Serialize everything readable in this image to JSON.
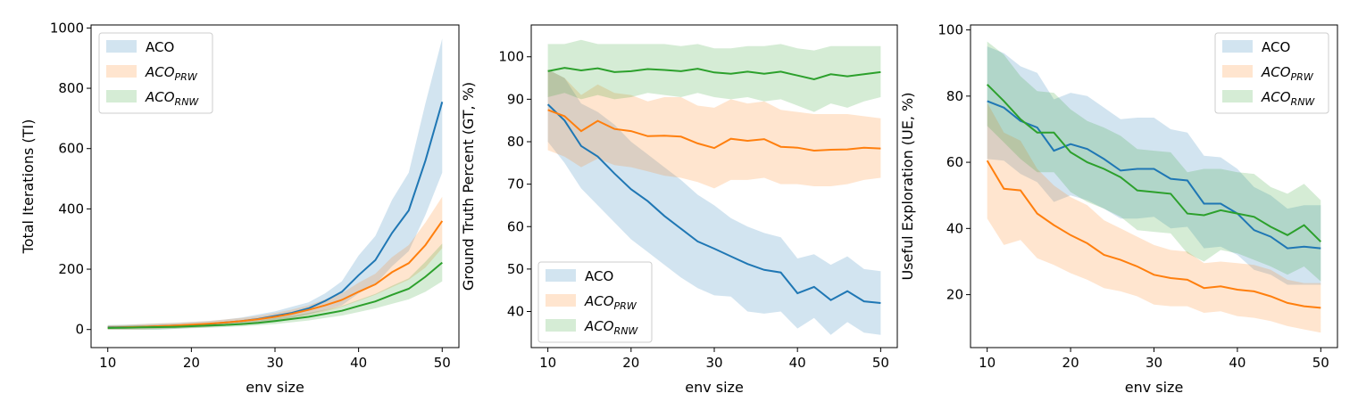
{
  "colors": {
    "ACO": "#1f77b4",
    "ACO_PRW": "#ff7f0e",
    "ACO_RNW": "#2ca02c"
  },
  "chart_data": [
    {
      "type": "line",
      "xlabel": "env size",
      "ylabel": "Total Iterations (TI)",
      "xlim": [
        8,
        52
      ],
      "ylim": [
        -60,
        1010
      ],
      "xticks": [
        10,
        20,
        30,
        40,
        50
      ],
      "yticks": [
        0,
        200,
        400,
        600,
        800,
        1000
      ],
      "grid": false,
      "legend": {
        "position": "top-left"
      },
      "x": [
        10,
        12,
        14,
        16,
        18,
        20,
        22,
        24,
        26,
        28,
        30,
        32,
        34,
        36,
        38,
        40,
        42,
        44,
        46,
        48,
        50
      ],
      "series": [
        {
          "name": "ACO",
          "base": "ACO",
          "sub": "",
          "color_key": "ACO",
          "mean": [
            7,
            8,
            9,
            11,
            13,
            15,
            18,
            23,
            28,
            35,
            45,
            55,
            70,
            95,
            125,
            180,
            230,
            320,
            395,
            560,
            755
          ],
          "lower": [
            0,
            0,
            0,
            0,
            2,
            5,
            8,
            12,
            15,
            20,
            30,
            38,
            50,
            65,
            80,
            120,
            150,
            210,
            260,
            380,
            520
          ],
          "upper": [
            15,
            16,
            18,
            20,
            22,
            25,
            28,
            33,
            40,
            50,
            60,
            75,
            90,
            120,
            160,
            245,
            310,
            430,
            520,
            750,
            965
          ]
        },
        {
          "name": "ACO_PRW",
          "base": "ACO",
          "sub": "PRW",
          "color_key": "ACO_PRW",
          "mean": [
            6,
            7,
            9,
            11,
            13,
            16,
            19,
            23,
            28,
            34,
            42,
            52,
            65,
            80,
            98,
            125,
            150,
            190,
            220,
            280,
            360
          ],
          "lower": [
            0,
            0,
            0,
            2,
            4,
            6,
            8,
            12,
            16,
            22,
            30,
            38,
            48,
            60,
            75,
            95,
            115,
            140,
            165,
            205,
            270
          ],
          "upper": [
            14,
            15,
            18,
            20,
            22,
            25,
            28,
            33,
            38,
            45,
            55,
            66,
            80,
            100,
            120,
            155,
            185,
            240,
            280,
            355,
            440
          ]
        },
        {
          "name": "ACO_RNW",
          "base": "ACO",
          "sub": "RNW",
          "color_key": "ACO_RNW",
          "mean": [
            5,
            6,
            7,
            8,
            9,
            11,
            13,
            15,
            18,
            22,
            28,
            35,
            42,
            52,
            62,
            78,
            93,
            115,
            135,
            175,
            222
          ],
          "lower": [
            0,
            0,
            0,
            0,
            2,
            4,
            6,
            8,
            10,
            14,
            18,
            24,
            30,
            38,
            46,
            58,
            70,
            85,
            100,
            125,
            160
          ],
          "upper": [
            12,
            13,
            14,
            15,
            16,
            18,
            20,
            22,
            26,
            30,
            38,
            46,
            55,
            66,
            78,
            98,
            118,
            145,
            170,
            225,
            285
          ]
        }
      ]
    },
    {
      "type": "line",
      "xlabel": "env size",
      "ylabel": "Ground Truth Percent (GT, %)",
      "xlim": [
        8,
        52
      ],
      "ylim": [
        31.5,
        107.5
      ],
      "xticks": [
        10,
        20,
        30,
        40,
        50
      ],
      "yticks": [
        40,
        50,
        60,
        70,
        80,
        90,
        100
      ],
      "grid": false,
      "legend": {
        "position": "bottom-left"
      },
      "x": [
        10,
        12,
        14,
        16,
        18,
        20,
        22,
        24,
        26,
        28,
        30,
        32,
        34,
        36,
        38,
        40,
        42,
        44,
        46,
        48,
        50
      ],
      "series": [
        {
          "name": "ACO",
          "base": "ACO",
          "sub": "",
          "color_key": "ACO",
          "mean": [
            88.8,
            85.0,
            79.0,
            76.5,
            72.5,
            68.8,
            66.0,
            62.5,
            59.5,
            56.5,
            54.8,
            53.0,
            51.2,
            49.8,
            49.2,
            44.3,
            45.8,
            42.7,
            44.8,
            42.4,
            42.0
          ],
          "lower": [
            80.0,
            75.0,
            69.0,
            65.0,
            61.0,
            57.0,
            54.0,
            51.0,
            48.0,
            45.5,
            43.8,
            43.5,
            40.0,
            39.5,
            40.0,
            36.0,
            38.5,
            34.5,
            37.5,
            35.0,
            34.5
          ],
          "upper": [
            97.0,
            95.0,
            89.0,
            87.0,
            84.0,
            80.0,
            77.0,
            74.0,
            71.0,
            67.5,
            65.0,
            62.0,
            60.0,
            58.5,
            57.5,
            52.5,
            53.5,
            51.0,
            53.0,
            50.0,
            49.5
          ]
        },
        {
          "name": "ACO_PRW",
          "base": "ACO",
          "sub": "PRW",
          "color_key": "ACO_PRW",
          "mean": [
            87.5,
            86.0,
            82.5,
            84.9,
            83.0,
            82.5,
            81.3,
            81.4,
            81.2,
            79.6,
            78.5,
            80.7,
            80.2,
            80.6,
            78.8,
            78.6,
            77.9,
            78.1,
            78.2,
            78.6,
            78.4
          ],
          "lower": [
            78.0,
            76.5,
            74.0,
            76.0,
            74.5,
            74.0,
            73.0,
            72.0,
            71.5,
            70.5,
            69.0,
            71.0,
            71.0,
            71.5,
            70.0,
            70.0,
            69.5,
            69.5,
            70.0,
            71.0,
            71.5
          ],
          "upper": [
            97.0,
            95.0,
            91.0,
            93.5,
            91.5,
            91.0,
            89.5,
            90.5,
            90.5,
            88.5,
            88.0,
            90.0,
            89.0,
            89.5,
            87.5,
            87.0,
            86.5,
            86.5,
            86.5,
            86.0,
            85.5
          ]
        },
        {
          "name": "ACO_RNW",
          "base": "ACO",
          "sub": "RNW",
          "color_key": "ACO_RNW",
          "mean": [
            96.6,
            97.4,
            96.8,
            97.3,
            96.4,
            96.6,
            97.1,
            96.9,
            96.6,
            97.2,
            96.3,
            96.0,
            96.5,
            96.0,
            96.5,
            95.6,
            94.7,
            95.9,
            95.4,
            95.9,
            96.4
          ],
          "lower": [
            90.5,
            91.5,
            90.0,
            91.0,
            90.0,
            90.5,
            91.5,
            91.0,
            90.5,
            91.5,
            90.5,
            90.0,
            90.5,
            89.5,
            90.0,
            88.5,
            87.0,
            89.0,
            88.0,
            89.5,
            90.5
          ],
          "upper": [
            103.0,
            103.0,
            104.0,
            103.0,
            103.0,
            103.0,
            103.0,
            103.0,
            102.5,
            103.0,
            102.0,
            102.0,
            102.5,
            102.5,
            103.0,
            102.0,
            101.5,
            102.5,
            102.5,
            102.5,
            102.5
          ]
        }
      ]
    },
    {
      "type": "line",
      "xlabel": "env size",
      "ylabel": "Useful Exploration (UE, %)",
      "xlim": [
        8,
        52
      ],
      "ylim": [
        4.0,
        101.5
      ],
      "xticks": [
        10,
        20,
        30,
        40,
        50
      ],
      "yticks": [
        20,
        40,
        60,
        80,
        100
      ],
      "grid": false,
      "legend": {
        "position": "top-right"
      },
      "x": [
        10,
        12,
        14,
        16,
        18,
        20,
        22,
        24,
        26,
        28,
        30,
        32,
        34,
        36,
        38,
        40,
        42,
        44,
        46,
        48,
        50
      ],
      "series": [
        {
          "name": "ACO",
          "base": "ACO",
          "sub": "",
          "color_key": "ACO",
          "mean": [
            78.5,
            76.5,
            72.5,
            70.5,
            63.5,
            65.5,
            64.0,
            61.0,
            57.5,
            58.0,
            58.0,
            55.0,
            54.5,
            47.5,
            47.5,
            44.5,
            39.5,
            37.5,
            34.0,
            34.5,
            34.0
          ],
          "lower": [
            61.0,
            60.5,
            56.5,
            54.0,
            48.0,
            50.0,
            48.5,
            46.0,
            43.0,
            43.0,
            43.5,
            40.0,
            40.5,
            34.0,
            34.5,
            32.0,
            27.5,
            26.0,
            23.0,
            23.0,
            23.0
          ],
          "upper": [
            95.0,
            93.0,
            89.0,
            87.0,
            79.0,
            81.0,
            80.0,
            76.5,
            73.0,
            73.5,
            73.5,
            70.0,
            69.0,
            62.0,
            61.5,
            58.0,
            52.5,
            50.0,
            46.0,
            47.0,
            47.0
          ]
        },
        {
          "name": "ACO_PRW",
          "base": "ACO",
          "sub": "PRW",
          "color_key": "ACO_PRW",
          "mean": [
            60.5,
            52.0,
            51.5,
            44.5,
            41.0,
            38.0,
            35.5,
            32.0,
            30.5,
            28.5,
            26.0,
            25.0,
            24.5,
            22.0,
            22.5,
            21.5,
            21.0,
            19.5,
            17.5,
            16.5,
            16.0
          ],
          "lower": [
            43.0,
            35.0,
            36.5,
            31.0,
            29.0,
            26.5,
            24.5,
            22.0,
            21.0,
            19.5,
            17.0,
            16.5,
            16.5,
            14.5,
            15.0,
            13.5,
            13.0,
            12.0,
            10.5,
            9.5,
            8.5
          ],
          "upper": [
            78.0,
            69.0,
            66.5,
            58.0,
            53.0,
            49.5,
            47.0,
            42.5,
            40.0,
            37.5,
            35.0,
            33.5,
            33.0,
            29.5,
            30.0,
            29.5,
            29.0,
            27.5,
            24.5,
            23.5,
            23.5
          ]
        },
        {
          "name": "ACO_RNW",
          "base": "ACO",
          "sub": "RNW",
          "color_key": "ACO_RNW",
          "mean": [
            83.5,
            78.5,
            73.0,
            69.0,
            69.0,
            63.0,
            60.0,
            58.0,
            55.5,
            51.5,
            51.0,
            50.5,
            44.5,
            44.0,
            45.5,
            44.5,
            43.5,
            40.5,
            38.0,
            41.0,
            36.0
          ],
          "lower": [
            71.0,
            66.0,
            61.0,
            57.0,
            57.0,
            51.0,
            48.0,
            46.0,
            43.5,
            39.5,
            39.0,
            38.5,
            32.5,
            30.0,
            33.5,
            32.5,
            30.5,
            28.5,
            26.0,
            28.5,
            24.0
          ],
          "upper": [
            96.5,
            92.5,
            86.0,
            81.5,
            81.0,
            76.0,
            72.5,
            70.5,
            68.0,
            64.0,
            63.5,
            63.0,
            57.0,
            58.0,
            58.0,
            57.0,
            56.5,
            52.5,
            50.5,
            53.5,
            48.5
          ]
        }
      ]
    }
  ]
}
